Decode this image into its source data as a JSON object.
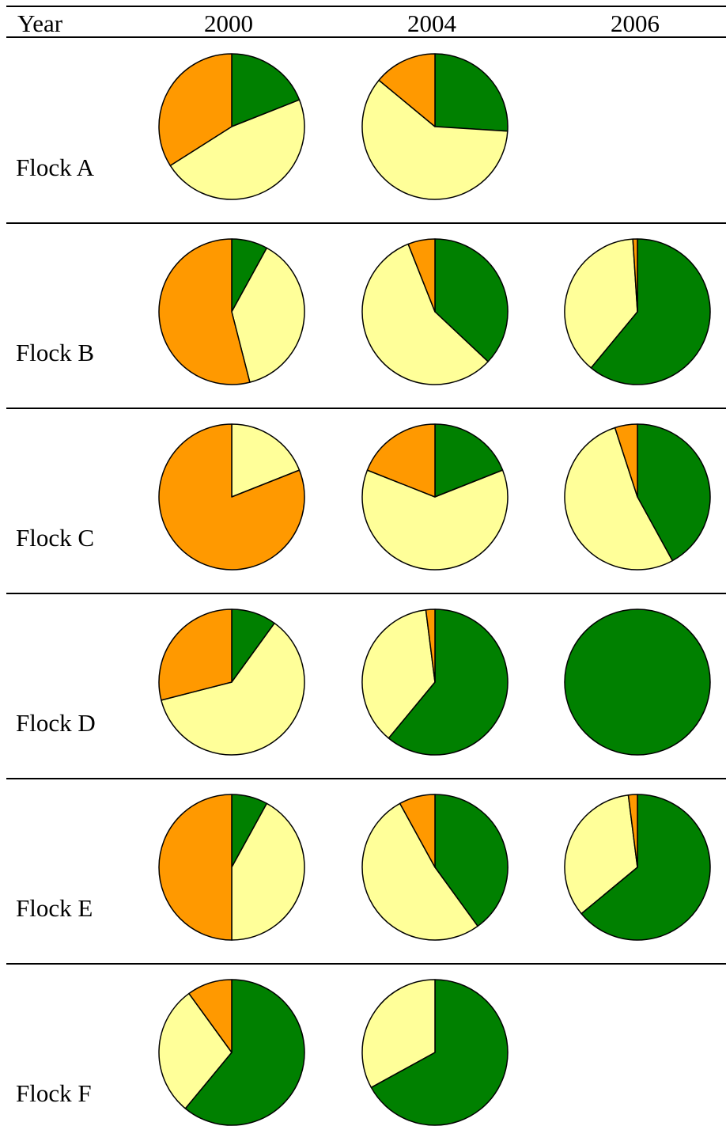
{
  "table": {
    "corner_label": "Year",
    "years": [
      "2000",
      "2004",
      "2006"
    ]
  },
  "colors": {
    "green": "#008000",
    "pale-yellow": "#ffff99",
    "orange": "#ff9900",
    "outline": "#000000"
  },
  "chart_data": {
    "type": "pie",
    "value_unit": "percent",
    "slice_order": [
      "green",
      "pale-yellow",
      "orange"
    ],
    "columns": [
      "2000",
      "2004",
      "2006"
    ],
    "rows": [
      {
        "label": "Flock A",
        "pies": [
          [
            19,
            47,
            34
          ],
          [
            26,
            60,
            14
          ],
          null
        ]
      },
      {
        "label": "Flock B",
        "pies": [
          [
            8,
            38,
            54
          ],
          [
            37,
            57,
            6
          ],
          [
            61,
            38,
            1
          ]
        ]
      },
      {
        "label": "Flock C",
        "pies": [
          [
            0,
            19,
            81
          ],
          [
            19,
            62,
            19
          ],
          [
            42,
            53,
            5
          ]
        ]
      },
      {
        "label": "Flock D",
        "pies": [
          [
            10,
            61,
            29
          ],
          [
            61,
            37,
            2
          ],
          [
            100,
            0,
            0
          ]
        ]
      },
      {
        "label": "Flock E",
        "pies": [
          [
            8,
            42,
            50
          ],
          [
            40,
            52,
            8
          ],
          [
            64,
            34,
            2
          ]
        ]
      },
      {
        "label": "Flock F",
        "pies": [
          [
            61,
            29,
            10
          ],
          [
            67,
            33,
            0
          ],
          null
        ]
      }
    ]
  }
}
